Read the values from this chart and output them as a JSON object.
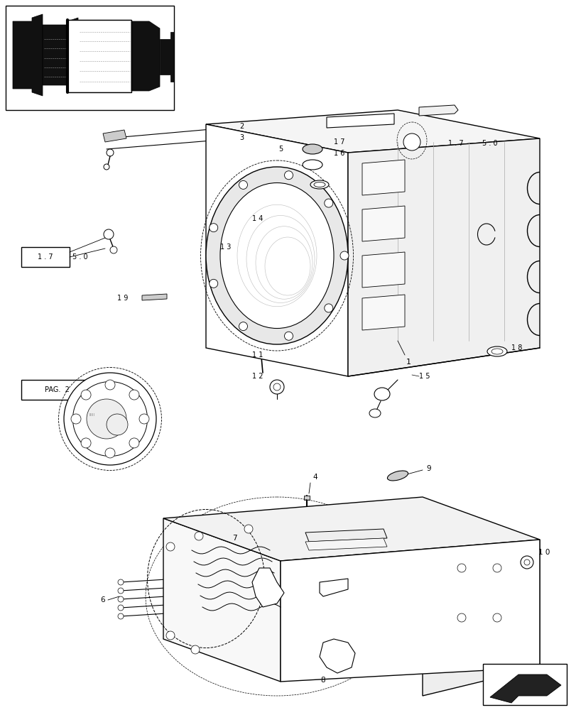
{
  "bg_color": "#ffffff",
  "fig_width": 8.12,
  "fig_height": 10.0,
  "line_color": "#000000",
  "dashed_color": "#555555",
  "light_gray": "#cccccc",
  "mid_gray": "#aaaaaa"
}
